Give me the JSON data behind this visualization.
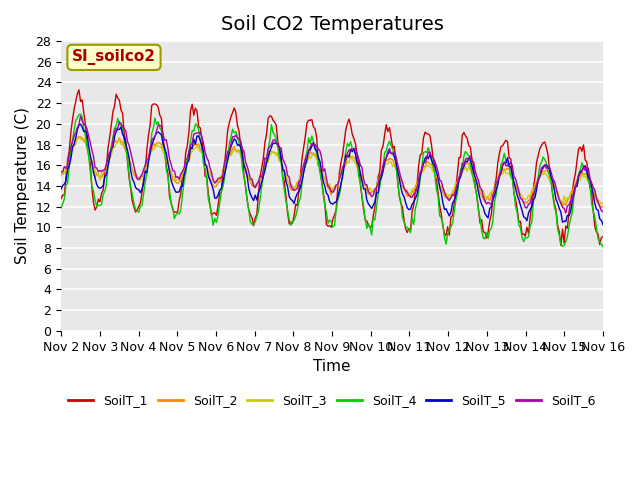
{
  "title": "Soil CO2 Temperatures",
  "xlabel": "Time",
  "ylabel": "Soil Temperature (C)",
  "ylim": [
    0,
    28
  ],
  "yticks": [
    0,
    2,
    4,
    6,
    8,
    10,
    12,
    14,
    16,
    18,
    20,
    22,
    24,
    26,
    28
  ],
  "x_tick_labels": [
    "Nov 2",
    "Nov 3",
    "Nov 4",
    "Nov 5",
    "Nov 6",
    "Nov 7",
    "Nov 8",
    "Nov 9",
    "Nov 10",
    "Nov 11",
    "Nov 12",
    "Nov 13",
    "Nov 14",
    "Nov 15",
    "Nov 16"
  ],
  "x_tick_pos": [
    0,
    1,
    2,
    3,
    4,
    5,
    6,
    7,
    8,
    9,
    10,
    11,
    12,
    13,
    14
  ],
  "series_colors": [
    "#cc0000",
    "#ff8800",
    "#cccc00",
    "#00cc00",
    "#0000cc",
    "#aa00aa"
  ],
  "series_names": [
    "SoilT_1",
    "SoilT_2",
    "SoilT_3",
    "SoilT_4",
    "SoilT_5",
    "SoilT_6"
  ],
  "annotation_text": "SI_soilco2",
  "annotation_color": "#aa0000",
  "annotation_bg": "#ffffcc",
  "bg_color": "#e8e8e8",
  "grid_color": "#ffffff",
  "title_fontsize": 14,
  "axis_fontsize": 11,
  "tick_fontsize": 9,
  "n_days": 14
}
